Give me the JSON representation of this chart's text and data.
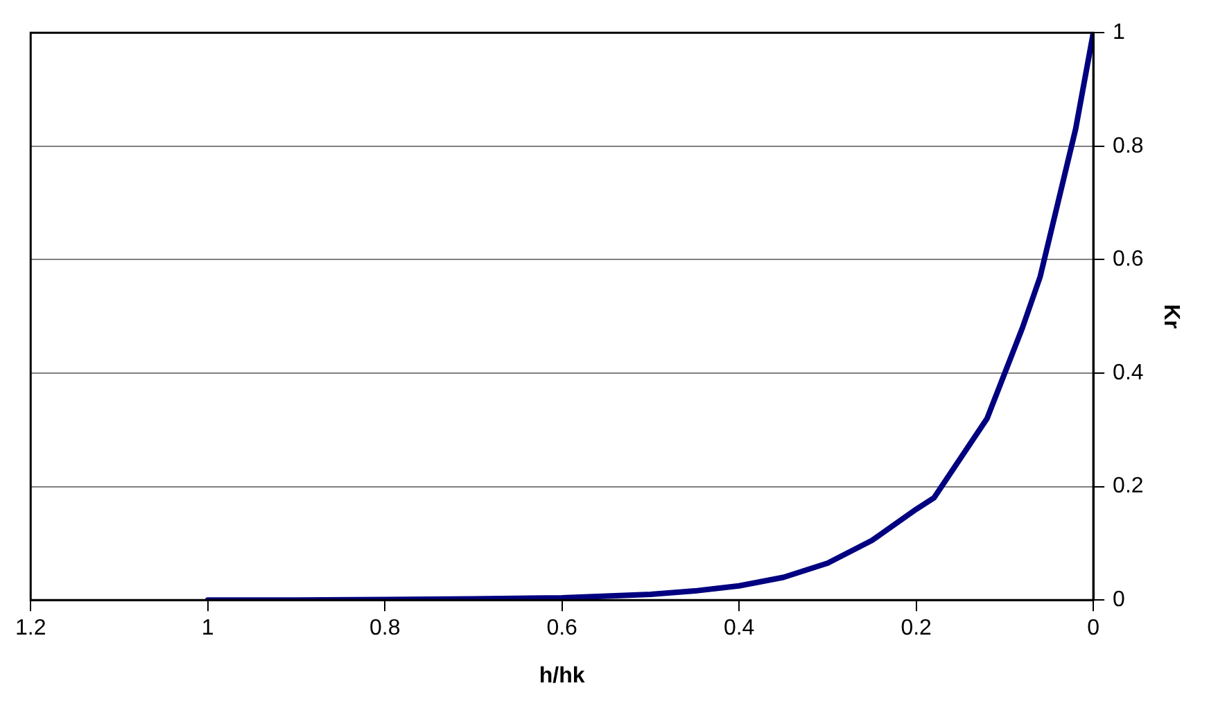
{
  "chart_data": {
    "type": "line",
    "xlabel": "h/hk",
    "ylabel": "Kr",
    "x": [
      1,
      0.9,
      0.8,
      0.7,
      0.6,
      0.5,
      0.45,
      0.4,
      0.35,
      0.3,
      0.25,
      0.2,
      0.18,
      0.15,
      0.12,
      0.1,
      0.08,
      0.06,
      0.04,
      0.02,
      0
    ],
    "series": [
      {
        "color": "#000080",
        "values": [
          0,
          0,
          0.001,
          0.002,
          0.004,
          0.01,
          0.016,
          0.025,
          0.04,
          0.065,
          0.105,
          0.16,
          0.18,
          0.25,
          0.32,
          0.4,
          0.48,
          0.57,
          0.7,
          0.83,
          1
        ]
      }
    ],
    "xlim": [
      1.2,
      0
    ],
    "xticks": [
      {
        "value": 1.2,
        "label": "1.2"
      },
      1,
      {
        "value": 0.8,
        "label": "0.8"
      },
      {
        "value": 0.6,
        "label": "0.6"
      },
      {
        "value": 0.4,
        "label": "0.4"
      },
      {
        "value": 0.2,
        "label": "0.2"
      },
      0
    ],
    "ylim": [
      0,
      1
    ],
    "yticks": [
      0,
      {
        "value": 0.2,
        "label": "0.2"
      },
      {
        "value": 0.4,
        "label": "0.4"
      },
      {
        "value": 0.6,
        "label": "0.6"
      },
      {
        "value": 0.8,
        "label": "0.8"
      },
      1
    ],
    "grid": "y",
    "legend": false,
    "marker": "none",
    "line_style": "solid"
  }
}
